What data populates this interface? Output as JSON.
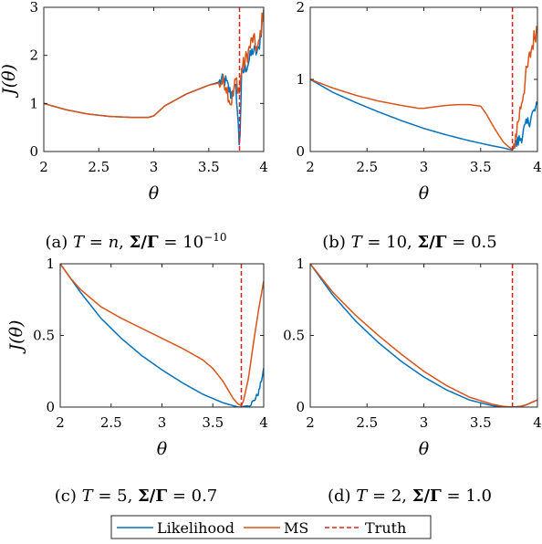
{
  "colors": {
    "likelihood": "#0072BD",
    "ms": "#D95319",
    "truth": "#E0201B"
  },
  "legend": {
    "entries": [
      {
        "name": "Likelihood",
        "style": "solid",
        "color": "#0072BD"
      },
      {
        "name": "MS",
        "style": "solid",
        "color": "#D95319"
      },
      {
        "name": "Truth",
        "style": "dashed",
        "color": "#E0201B"
      }
    ],
    "placement": "bottom-center"
  },
  "chart_data": [
    {
      "type": "line",
      "caption": [
        "(a) ",
        "T",
        " = ",
        "n",
        ", ",
        "Σ/Γ",
        " = 10",
        "−10"
      ],
      "xlabel": "θ",
      "ylabel": "J(θ)",
      "xlim": [
        2,
        4
      ],
      "ylim": [
        0,
        3
      ],
      "xticks": [
        2,
        2.5,
        3,
        3.5,
        4
      ],
      "xtick_labels": [
        "2",
        "2.5",
        "3",
        "3.5",
        "4"
      ],
      "yticks": [
        0,
        1,
        2,
        3
      ],
      "ytick_labels": [
        "0",
        "1",
        "2",
        "3"
      ],
      "truth_x": 3.78,
      "series": [
        {
          "name": "Likelihood",
          "noise": 0.05,
          "noise_from": 3.6,
          "x": [
            2.0,
            2.2,
            2.4,
            2.6,
            2.8,
            2.95,
            3.0,
            3.1,
            3.3,
            3.5,
            3.65,
            3.7,
            3.75,
            3.78,
            3.8,
            3.85,
            3.9,
            3.95,
            4.0
          ],
          "y": [
            1.0,
            0.87,
            0.78,
            0.73,
            0.71,
            0.71,
            0.74,
            0.95,
            1.2,
            1.38,
            1.48,
            1.2,
            1.3,
            0.05,
            1.6,
            1.8,
            2.1,
            2.05,
            2.9
          ]
        },
        {
          "name": "MS",
          "noise": 0.06,
          "noise_from": 3.6,
          "x": [
            2.0,
            2.2,
            2.4,
            2.6,
            2.8,
            2.95,
            3.0,
            3.1,
            3.3,
            3.5,
            3.65,
            3.7,
            3.75,
            3.78,
            3.8,
            3.85,
            3.9,
            3.95,
            4.0
          ],
          "y": [
            1.0,
            0.87,
            0.78,
            0.73,
            0.71,
            0.71,
            0.74,
            0.95,
            1.2,
            1.38,
            1.45,
            1.0,
            1.5,
            1.2,
            1.7,
            2.0,
            2.35,
            2.1,
            3.0
          ]
        }
      ]
    },
    {
      "type": "line",
      "caption": [
        "(b) ",
        "T",
        " = 10, ",
        "Σ/Γ",
        " = 0.5",
        ""
      ],
      "xlabel": "θ",
      "ylabel": "",
      "xlim": [
        2,
        4
      ],
      "ylim": [
        0,
        2
      ],
      "xticks": [
        2,
        2.5,
        3,
        3.5,
        4
      ],
      "xtick_labels": [
        "2",
        "2.5",
        "3",
        "3.5",
        "4"
      ],
      "yticks": [
        0,
        1,
        2
      ],
      "ytick_labels": [
        "0",
        "1",
        "2"
      ],
      "truth_x": 3.78,
      "series": [
        {
          "name": "Likelihood",
          "noise": 0.05,
          "noise_from": 3.8,
          "x": [
            2.0,
            2.2,
            2.4,
            2.6,
            2.8,
            3.0,
            3.2,
            3.4,
            3.6,
            3.7,
            3.75,
            3.78,
            3.8,
            3.85,
            3.9,
            3.95,
            4.0
          ],
          "y": [
            1.0,
            0.82,
            0.68,
            0.55,
            0.43,
            0.32,
            0.23,
            0.15,
            0.08,
            0.05,
            0.03,
            0.02,
            0.08,
            0.18,
            0.35,
            0.5,
            0.62
          ]
        },
        {
          "name": "MS",
          "noise": 0.07,
          "noise_from": 3.8,
          "x": [
            2.0,
            2.2,
            2.4,
            2.6,
            2.8,
            2.95,
            3.0,
            3.1,
            3.2,
            3.3,
            3.4,
            3.5,
            3.55,
            3.6,
            3.65,
            3.7,
            3.75,
            3.78,
            3.8,
            3.85,
            3.9,
            3.95,
            4.0
          ],
          "y": [
            1.0,
            0.88,
            0.78,
            0.7,
            0.64,
            0.6,
            0.6,
            0.62,
            0.64,
            0.65,
            0.65,
            0.63,
            0.52,
            0.38,
            0.25,
            0.13,
            0.06,
            0.03,
            0.15,
            0.6,
            1.05,
            1.45,
            1.75
          ]
        }
      ]
    },
    {
      "type": "line",
      "caption": [
        "(c) ",
        "T",
        " = 5, ",
        "Σ/Γ",
        " = 0.7",
        ""
      ],
      "xlabel": "θ",
      "ylabel": "J(θ)",
      "xlim": [
        2,
        4
      ],
      "ylim": [
        0,
        1
      ],
      "xticks": [
        2,
        2.5,
        3,
        3.5,
        4
      ],
      "xtick_labels": [
        "2",
        "2.5",
        "3",
        "3.5",
        "4"
      ],
      "yticks": [
        0,
        0.5,
        1
      ],
      "ytick_labels": [
        "0",
        "0.5",
        "1"
      ],
      "truth_x": 3.78,
      "series": [
        {
          "name": "Likelihood",
          "noise": 0.015,
          "noise_from": 3.85,
          "x": [
            2.0,
            2.2,
            2.4,
            2.6,
            2.8,
            3.0,
            3.2,
            3.4,
            3.6,
            3.7,
            3.75,
            3.78,
            3.8,
            3.85,
            3.9,
            3.95,
            4.0
          ],
          "y": [
            1.0,
            0.8,
            0.62,
            0.48,
            0.36,
            0.26,
            0.17,
            0.09,
            0.03,
            0.01,
            0.0,
            0.0,
            0.005,
            0.01,
            0.04,
            0.1,
            0.26
          ]
        },
        {
          "name": "MS",
          "x": [
            2.0,
            2.1,
            2.2,
            2.4,
            2.6,
            2.8,
            3.0,
            3.2,
            3.4,
            3.5,
            3.6,
            3.65,
            3.7,
            3.75,
            3.78,
            3.8,
            3.85,
            3.9,
            3.95,
            4.0
          ],
          "y": [
            1.0,
            0.9,
            0.82,
            0.7,
            0.62,
            0.55,
            0.48,
            0.41,
            0.33,
            0.27,
            0.18,
            0.12,
            0.06,
            0.02,
            0.01,
            0.04,
            0.2,
            0.45,
            0.68,
            0.88
          ]
        }
      ]
    },
    {
      "type": "line",
      "caption": [
        "(d) ",
        "T",
        " = 2, ",
        "Σ/Γ",
        " = 1.0",
        ""
      ],
      "xlabel": "θ",
      "ylabel": "",
      "xlim": [
        2,
        4
      ],
      "ylim": [
        0,
        1
      ],
      "xticks": [
        2,
        2.5,
        3,
        3.5,
        4
      ],
      "xtick_labels": [
        "2",
        "2.5",
        "3",
        "3.5",
        "4"
      ],
      "yticks": [
        0,
        0.5,
        1
      ],
      "ytick_labels": [
        "0",
        "0.5",
        "1"
      ],
      "truth_x": 3.78,
      "series": [
        {
          "name": "Likelihood",
          "x": [
            2.0,
            2.2,
            2.4,
            2.6,
            2.8,
            3.0,
            3.2,
            3.4,
            3.6,
            3.7,
            3.78,
            3.85,
            3.9,
            4.0
          ],
          "y": [
            1.0,
            0.78,
            0.6,
            0.45,
            0.32,
            0.21,
            0.12,
            0.05,
            0.01,
            0.0,
            0.0,
            0.005,
            0.015,
            0.05
          ]
        },
        {
          "name": "MS",
          "x": [
            2.0,
            2.2,
            2.4,
            2.6,
            2.8,
            3.0,
            3.2,
            3.4,
            3.6,
            3.7,
            3.78,
            3.85,
            3.9,
            4.0
          ],
          "y": [
            1.0,
            0.8,
            0.64,
            0.5,
            0.37,
            0.25,
            0.15,
            0.07,
            0.02,
            0.005,
            0.0,
            0.005,
            0.015,
            0.05
          ]
        }
      ]
    }
  ]
}
